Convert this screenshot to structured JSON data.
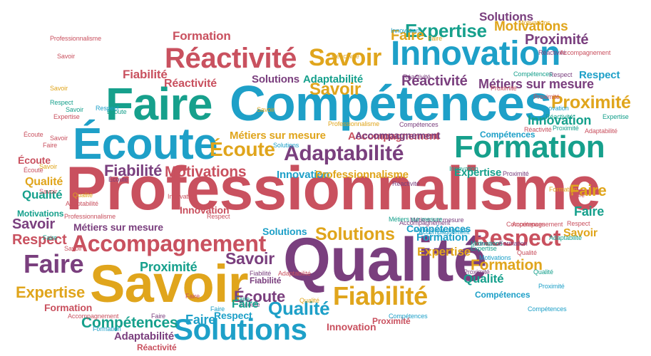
{
  "palette": {
    "red": "#c9515f",
    "blue": "#1ea0c8",
    "teal": "#16a08c",
    "gold": "#e0a51c",
    "purple": "#7a3f7e"
  },
  "words": [
    {
      "text": "Professionnalisme",
      "color": "red"
    },
    {
      "text": "Compétences",
      "color": "blue"
    },
    {
      "text": "Qualité",
      "color": "purple"
    },
    {
      "text": "Savoir",
      "color": "gold"
    },
    {
      "text": "Faire",
      "color": "teal"
    },
    {
      "text": "Écoute",
      "color": "blue"
    },
    {
      "text": "Innovation",
      "color": "blue"
    },
    {
      "text": "Réactivité",
      "color": "red"
    },
    {
      "text": "Formation",
      "color": "teal"
    },
    {
      "text": "Solutions",
      "color": "blue"
    },
    {
      "text": "Accompagnement",
      "color": "red"
    },
    {
      "text": "Adaptabilité",
      "color": "purple"
    },
    {
      "text": "Fiabilité",
      "color": "gold"
    },
    {
      "text": "Respect",
      "color": "red"
    },
    {
      "text": "Savoir",
      "color": "gold"
    },
    {
      "text": "Expertise",
      "color": "teal"
    },
    {
      "text": "Proximité",
      "color": "gold"
    },
    {
      "text": "Écoute",
      "color": "gold"
    },
    {
      "text": "Solutions",
      "color": "gold"
    },
    {
      "text": "Faire",
      "color": "purple"
    },
    {
      "text": "Qualité",
      "color": "blue"
    },
    {
      "text": "Innovation",
      "color": "teal"
    },
    {
      "text": "Motivations",
      "color": "red"
    },
    {
      "text": "Fiabilité",
      "color": "purple"
    },
    {
      "text": "Expertise",
      "color": "gold"
    },
    {
      "text": "Formation",
      "color": "gold"
    },
    {
      "text": "Savoir",
      "color": "purple"
    },
    {
      "text": "Proximité",
      "color": "teal"
    },
    {
      "text": "Faire",
      "color": "gold"
    },
    {
      "text": "Savoir",
      "color": "gold"
    },
    {
      "text": "Respect",
      "color": "blue"
    },
    {
      "text": "Métiers sur mesure",
      "color": "purple"
    },
    {
      "text": "Solutions",
      "color": "purple"
    },
    {
      "text": "Professionnalisme",
      "color": "red"
    },
    {
      "text": "Compétences",
      "color": "teal"
    },
    {
      "text": "Réactivité",
      "color": "purple"
    },
    {
      "text": "Proximité",
      "color": "purple"
    },
    {
      "text": "Motivations",
      "color": "gold"
    },
    {
      "text": "Expertise",
      "color": "gold"
    },
    {
      "text": "Qualité",
      "color": "teal"
    },
    {
      "text": "Écoute",
      "color": "purple"
    },
    {
      "text": "Faire",
      "color": "teal"
    },
    {
      "text": "Fiabilité",
      "color": "purple"
    },
    {
      "text": "Adaptabilité",
      "color": "teal"
    },
    {
      "text": "Métiers sur mesure",
      "color": "gold"
    },
    {
      "text": "Accompagnement",
      "color": "red"
    },
    {
      "text": "Innovation",
      "color": "blue"
    },
    {
      "text": "Professionnalisme",
      "color": "gold"
    },
    {
      "text": "Expertise",
      "color": "teal"
    },
    {
      "text": "Solutions",
      "color": "purple"
    },
    {
      "text": "Faire",
      "color": "teal"
    },
    {
      "text": "Respect",
      "color": "red"
    },
    {
      "text": "Formation",
      "color": "red"
    },
    {
      "text": "Qualité",
      "color": "teal"
    },
    {
      "text": "Écoute",
      "color": "purple"
    },
    {
      "text": "Savoir",
      "color": "purple"
    },
    {
      "text": "Faire",
      "color": "teal"
    },
    {
      "text": "Compétences",
      "color": "blue"
    },
    {
      "text": "Innovation",
      "color": "red"
    },
    {
      "text": "Motivations",
      "color": "teal"
    },
    {
      "text": "Formation",
      "color": "red"
    },
    {
      "text": "Fiabilité",
      "color": "red"
    },
    {
      "text": "Réactivité",
      "color": "red"
    },
    {
      "text": "Compétences",
      "color": "blue"
    },
    {
      "text": "Accompagnement",
      "color": "purple"
    },
    {
      "text": "Proximité",
      "color": "purple"
    },
    {
      "text": "Faire",
      "color": "red"
    },
    {
      "text": "Faire",
      "color": "purple"
    },
    {
      "text": "Savoir",
      "color": "gold"
    },
    {
      "text": "Écoute",
      "color": "teal"
    },
    {
      "text": "Faire",
      "color": "blue"
    },
    {
      "text": "Accompagnement",
      "color": "purple"
    },
    {
      "text": "Compétences",
      "color": "blue"
    },
    {
      "text": "Qualité",
      "color": "red"
    },
    {
      "text": "Adaptabilité",
      "color": "red"
    },
    {
      "text": "Réactivité",
      "color": "purple"
    },
    {
      "text": "Innovation",
      "color": "red"
    },
    {
      "text": "Proximité",
      "color": "red"
    },
    {
      "text": "Respect",
      "color": "blue"
    },
    {
      "text": "Formation",
      "color": "purple"
    },
    {
      "text": "Faire",
      "color": "red"
    },
    {
      "text": "Respect",
      "color": "blue"
    },
    {
      "text": "Métiers sur mesure",
      "color": "purple"
    },
    {
      "text": "Adaptabilité",
      "color": "purple"
    },
    {
      "text": "Réactivité",
      "color": "red"
    },
    {
      "text": "Qualité",
      "color": "gold"
    },
    {
      "text": "Écoute",
      "color": "red"
    },
    {
      "text": "Savoir",
      "color": "red"
    },
    {
      "text": "Qualité",
      "color": "gold"
    },
    {
      "text": "Motivations",
      "color": "teal"
    },
    {
      "text": "Solutions",
      "color": "blue"
    },
    {
      "text": "Savoir",
      "color": "gold"
    },
    {
      "text": "Compétences",
      "color": "purple"
    },
    {
      "text": "Formation",
      "color": "blue"
    },
    {
      "text": "Métiers sur mesure",
      "color": "blue"
    },
    {
      "text": "Accompagnement",
      "color": "blue"
    },
    {
      "text": "Faire",
      "color": "gold"
    },
    {
      "text": "Écoute",
      "color": "red"
    },
    {
      "text": "Innovation",
      "color": "blue"
    },
    {
      "text": "Savoir",
      "color": "gold"
    },
    {
      "text": "Fiabilité",
      "color": "purple"
    },
    {
      "text": "Écoute",
      "color": "purple"
    },
    {
      "text": "Qualité",
      "color": "teal"
    },
    {
      "text": "Adaptabilité",
      "color": "red"
    },
    {
      "text": "Accompagnement",
      "color": "red"
    },
    {
      "text": "Réactivité",
      "color": "purple"
    },
    {
      "text": "Respect",
      "color": "purple"
    },
    {
      "text": "Expertise",
      "color": "teal"
    },
    {
      "text": "Savoir",
      "color": "red"
    },
    {
      "text": "Formation",
      "color": "blue"
    },
    {
      "text": "Innovation",
      "color": "red"
    },
    {
      "text": "Proximité",
      "color": "red"
    },
    {
      "text": "Professionnalisme",
      "color": "gold"
    },
    {
      "text": "Motivations",
      "color": "blue"
    },
    {
      "text": "Compétences",
      "color": "red"
    },
    {
      "text": "Savoir",
      "color": "red"
    },
    {
      "text": "Faire",
      "color": "red"
    },
    {
      "text": "Accompagnement",
      "color": "red"
    },
    {
      "text": "Formation",
      "color": "purple"
    },
    {
      "text": "Réactivité",
      "color": "red"
    },
    {
      "text": "Proximité",
      "color": "purple"
    },
    {
      "text": "Respect",
      "color": "red"
    },
    {
      "text": "Métiers sur mesure",
      "color": "purple"
    },
    {
      "text": "Solutions",
      "color": "blue"
    },
    {
      "text": "Proximité",
      "color": "blue"
    },
    {
      "text": "Réactivité",
      "color": "gold"
    },
    {
      "text": "Motivations",
      "color": "gold"
    },
    {
      "text": "Compétences",
      "color": "blue"
    },
    {
      "text": "Expertise",
      "color": "red"
    },
    {
      "text": "Formation",
      "color": "gold"
    },
    {
      "text": "Réactivité",
      "color": "purple"
    },
    {
      "text": "Respect",
      "color": "teal"
    },
    {
      "text": "Faire",
      "color": "blue"
    },
    {
      "text": "Compétences",
      "color": "blue"
    },
    {
      "text": "Adaptabilité",
      "color": "teal"
    },
    {
      "text": "Innovation",
      "color": "blue"
    },
    {
      "text": "Proximité",
      "color": "red"
    },
    {
      "text": "Accompagnement",
      "color": "red"
    },
    {
      "text": "Métiers sur mesure",
      "color": "teal"
    },
    {
      "text": "Réactivité",
      "color": "teal"
    },
    {
      "text": "Savoir",
      "color": "gold"
    },
    {
      "text": "Qualité",
      "color": "gold"
    },
    {
      "text": "Faire",
      "color": "gold"
    },
    {
      "text": "Savoir",
      "color": "teal"
    },
    {
      "text": "Innovation",
      "color": "teal"
    },
    {
      "text": "Adaptabilité",
      "color": "red"
    },
    {
      "text": "Proximité",
      "color": "teal"
    },
    {
      "text": "Professionnalisme",
      "color": "red"
    },
    {
      "text": "Compétences",
      "color": "teal"
    },
    {
      "text": "Expertise",
      "color": "teal"
    },
    {
      "text": "Écoute",
      "color": "red"
    },
    {
      "text": "Respect",
      "color": "red"
    },
    {
      "text": "Faire",
      "color": "teal"
    },
    {
      "text": "Savoir",
      "color": "red"
    }
  ]
}
